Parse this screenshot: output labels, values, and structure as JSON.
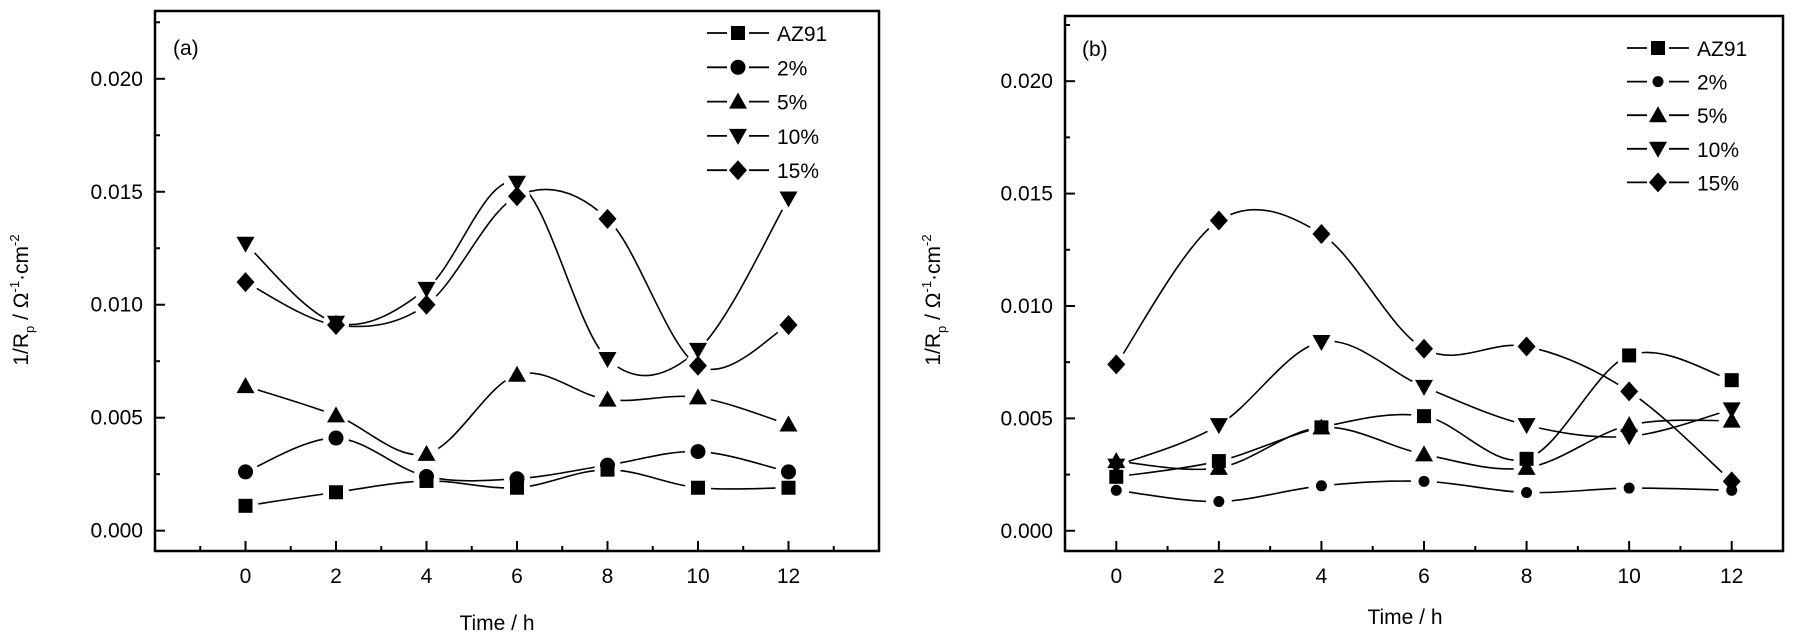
{
  "chart_data": [
    {
      "type": "line",
      "panel_label": "(a)",
      "xlabel": "Time / h",
      "ylabel": {
        "main": "1/R",
        "sub": "p",
        "unit_prefix": " / Ω",
        "sup1": "-1",
        "unit_mid": "·cm",
        "sup2": "-2"
      },
      "xlim": [
        -2,
        14
      ],
      "ylim": [
        -0.0009,
        0.023
      ],
      "x_ticks": [
        0,
        2,
        4,
        6,
        8,
        10,
        12
      ],
      "x_tick_labels": [
        "0",
        "2",
        "4",
        "6",
        "8",
        "10",
        "12"
      ],
      "y_ticks": [
        0.0,
        0.005,
        0.01,
        0.015,
        0.02
      ],
      "y_tick_labels": [
        "0.000",
        "0.005",
        "0.010",
        "0.015",
        "0.020"
      ],
      "smooth": true,
      "grid": false,
      "legend_position": "top-right",
      "x": [
        0,
        2,
        4,
        6,
        8,
        10,
        12
      ],
      "series": [
        {
          "name": "AZ91",
          "marker": "square",
          "values": [
            0.0011,
            0.0017,
            0.0022,
            0.0019,
            0.0027,
            0.0019,
            0.0019
          ]
        },
        {
          "name": "2%",
          "marker": "circle",
          "values": [
            0.0026,
            0.0041,
            0.0024,
            0.0023,
            0.0029,
            0.0035,
            0.0026
          ]
        },
        {
          "name": "5%",
          "marker": "triangle-up",
          "values": [
            0.0064,
            0.0051,
            0.0034,
            0.0069,
            0.0058,
            0.0059,
            0.0047
          ]
        },
        {
          "name": "10%",
          "marker": "triangle-down",
          "values": [
            0.0127,
            0.0092,
            0.0107,
            0.0154,
            0.0076,
            0.008,
            0.0147
          ]
        },
        {
          "name": "15%",
          "marker": "diamond",
          "values": [
            0.011,
            0.0091,
            0.01,
            0.0148,
            0.0138,
            0.0073,
            0.0091
          ]
        }
      ]
    },
    {
      "type": "line",
      "panel_label": "(b)",
      "xlabel": "Time / h",
      "ylabel": {
        "main": "1/R",
        "sub": "p",
        "unit_prefix": " / Ω",
        "sup1": "-1",
        "unit_mid": "·cm",
        "sup2": "-2"
      },
      "xlim": [
        -1,
        13
      ],
      "ylim": [
        -0.0009,
        0.0229
      ],
      "x_ticks": [
        0,
        2,
        4,
        6,
        8,
        10,
        12
      ],
      "x_tick_labels": [
        "0",
        "2",
        "4",
        "6",
        "8",
        "10",
        "12"
      ],
      "y_ticks": [
        0.0,
        0.005,
        0.01,
        0.015,
        0.02
      ],
      "y_tick_labels": [
        "0.000",
        "0.005",
        "0.010",
        "0.015",
        "0.020"
      ],
      "smooth": true,
      "grid": false,
      "legend_position": "top-right",
      "x": [
        0,
        2,
        4,
        6,
        8,
        10,
        12
      ],
      "series": [
        {
          "name": "AZ91",
          "marker": "square",
          "values": [
            0.0024,
            0.0031,
            0.0046,
            0.0051,
            0.0032,
            0.0078,
            0.0067
          ]
        },
        {
          "name": "2%",
          "marker": "circle-small",
          "values": [
            0.0018,
            0.0013,
            0.002,
            0.0022,
            0.0017,
            0.0019,
            0.0018
          ]
        },
        {
          "name": "5%",
          "marker": "triangle-up",
          "values": [
            0.0031,
            0.0028,
            0.0046,
            0.0034,
            0.0028,
            0.0047,
            0.0049
          ]
        },
        {
          "name": "10%",
          "marker": "triangle-down",
          "values": [
            0.0029,
            0.0047,
            0.0084,
            0.0064,
            0.0047,
            0.0042,
            0.0054
          ]
        },
        {
          "name": "15%",
          "marker": "diamond",
          "values": [
            0.0074,
            0.0138,
            0.0132,
            0.0081,
            0.0082,
            0.0062,
            0.0022
          ]
        }
      ]
    }
  ]
}
